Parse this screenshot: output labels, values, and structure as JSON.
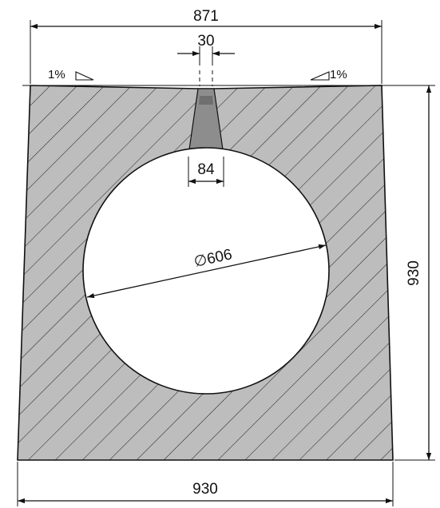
{
  "drawing": {
    "dimensions": {
      "top_width": "871",
      "slot_width": "30",
      "slot_bottom_width": "84",
      "diameter": "∅606",
      "height": "930",
      "bottom_width": "930"
    },
    "slopes": {
      "left": "1%",
      "right": "1%"
    },
    "colors": {
      "concrete": "#b9b9b9",
      "slot_shade": "#8d8d8d",
      "line": "#111111",
      "background": "#ffffff"
    }
  }
}
